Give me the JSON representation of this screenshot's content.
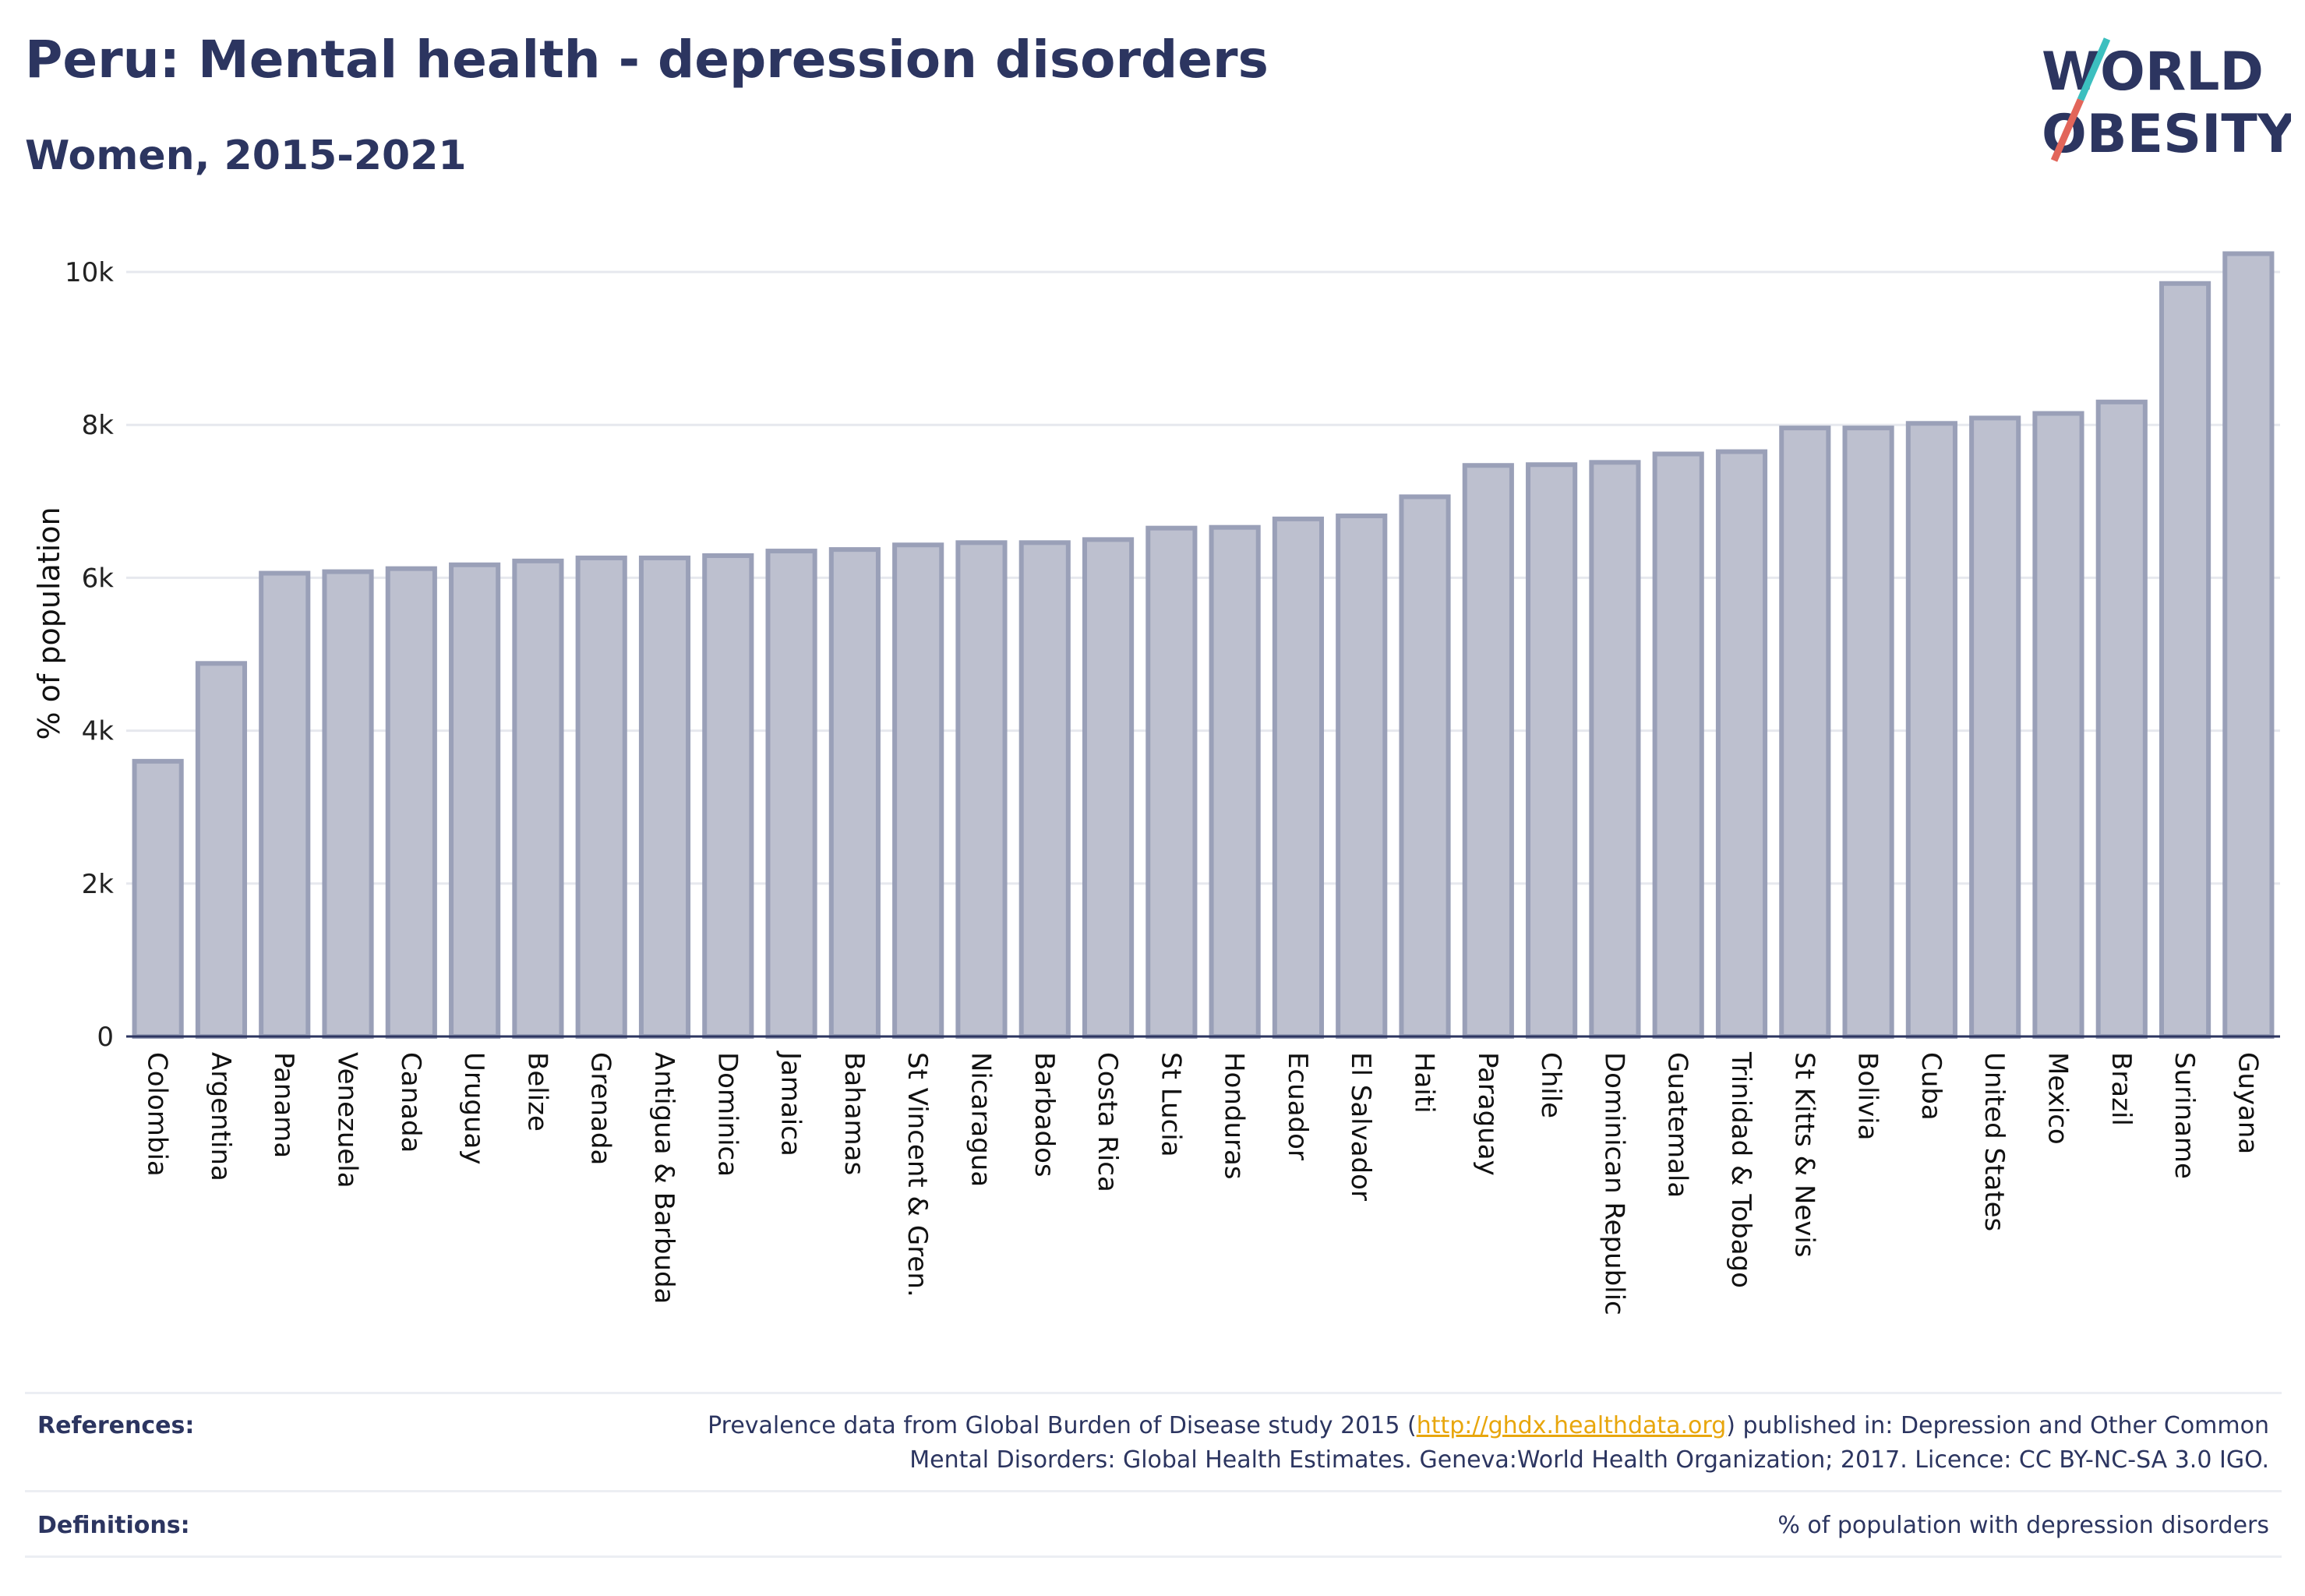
{
  "header": {
    "title": "Peru: Mental health - depression disorders",
    "subtitle": "Women, 2015-2021"
  },
  "logo": {
    "line1": "WORLD",
    "line2": "OBESITY",
    "accent_teal": "#3cbfbf",
    "accent_red": "#e2655a"
  },
  "colors": {
    "bar_fill": "#bdc0cf",
    "bar_stroke": "#9aa0b8",
    "grid": "#e6e8ee",
    "text": "#2c3560"
  },
  "chart_data": {
    "type": "bar",
    "title": "Peru: Mental health - depression disorders",
    "subtitle": "Women, 2015-2021",
    "xlabel": "",
    "ylabel": "% of population",
    "ylim": [
      0,
      10500
    ],
    "yticks": [
      0,
      2000,
      4000,
      6000,
      8000,
      10000
    ],
    "ytick_labels": [
      "0",
      "2k",
      "4k",
      "6k",
      "8k",
      "10k"
    ],
    "grid": true,
    "categories": [
      "Colombia",
      "Argentina",
      "Panama",
      "Venezuela",
      "Canada",
      "Uruguay",
      "Belize",
      "Grenada",
      "Antigua & Barbuda",
      "Dominica",
      "Jamaica",
      "Bahamas",
      "St Vincent & Gren.",
      "Nicaragua",
      "Barbados",
      "Costa Rica",
      "St Lucia",
      "Honduras",
      "Ecuador",
      "El Salvador",
      "Haiti",
      "Paraguay",
      "Chile",
      "Dominican Republic",
      "Guatemala",
      "Trinidad & Tobago",
      "St Kitts & Nevis",
      "Bolivia",
      "Cuba",
      "United States",
      "Mexico",
      "Brazil",
      "Suriname",
      "Guyana"
    ],
    "values": [
      3600,
      4880,
      6060,
      6080,
      6120,
      6170,
      6220,
      6260,
      6260,
      6290,
      6350,
      6370,
      6430,
      6460,
      6460,
      6500,
      6650,
      6660,
      6770,
      6810,
      7060,
      7470,
      7480,
      7510,
      7620,
      7650,
      7960,
      7960,
      8020,
      8090,
      8150,
      8300,
      9850,
      10240
    ]
  },
  "footer": {
    "references_label": "References:",
    "references_text_pre": "Prevalence data from Global Burden of Disease study 2015 (",
    "references_link": "http://ghdx.healthdata.org",
    "references_text_post": ") published in: Depression and Other Common",
    "references_line2": "Mental Disorders: Global Health Estimates. Geneva:World Health Organization; 2017. Licence: CC BY-NC-SA 3.0 IGO.",
    "definitions_label": "Definitions:",
    "definitions_text": "% of population with depression disorders"
  }
}
